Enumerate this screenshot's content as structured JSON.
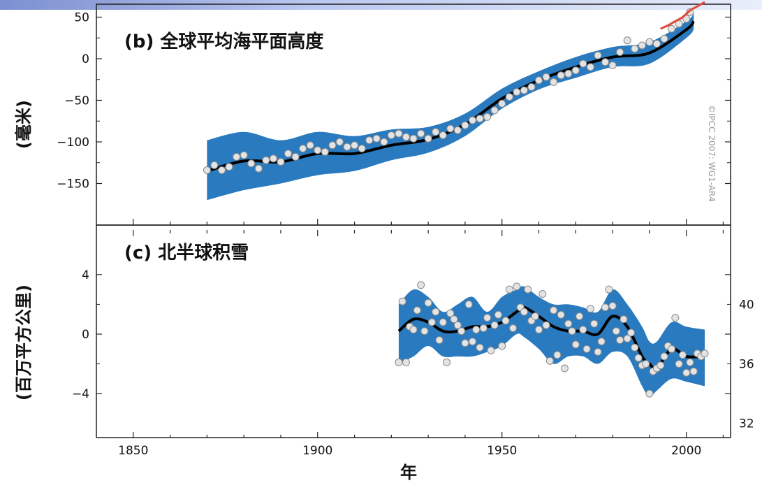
{
  "chart_data": [
    {
      "type": "scatter",
      "title": "(b) 全球平均海平面高度",
      "ylabel": "(毫米)",
      "xlim": [
        1840,
        2012
      ],
      "ylim": [
        -200,
        100
      ],
      "yticks": [
        50,
        0,
        -50,
        -100,
        -150
      ],
      "ytick_labels": [
        "50",
        "0",
        "−50",
        "−100",
        "−150"
      ],
      "credit": "©IPCC 2007: WG1-AR4",
      "uncertainty_color": "#2a7abf",
      "smooth_color": "#000000",
      "satellite_color": "#e04a3a",
      "band": {
        "x": [
          1870,
          1880,
          1890,
          1900,
          1910,
          1920,
          1930,
          1940,
          1950,
          1960,
          1970,
          1980,
          1990,
          2000,
          2002
        ],
        "upper": [
          -98,
          -88,
          -98,
          -88,
          -93,
          -85,
          -82,
          -66,
          -36,
          -15,
          2,
          14,
          20,
          45,
          55
        ],
        "lower": [
          -170,
          -158,
          -150,
          -140,
          -135,
          -122,
          -113,
          -93,
          -60,
          -37,
          -23,
          -10,
          -6,
          25,
          35
        ]
      },
      "smooth": {
        "x": [
          1870,
          1880,
          1890,
          1900,
          1910,
          1920,
          1930,
          1940,
          1950,
          1960,
          1970,
          1980,
          1990,
          2000,
          2002
        ],
        "y": [
          -135,
          -123,
          -124,
          -114,
          -114,
          -104,
          -97,
          -79,
          -48,
          -26,
          -10,
          2,
          7,
          35,
          45
        ]
      },
      "observations": {
        "x": [
          1870,
          1872,
          1874,
          1876,
          1878,
          1880,
          1882,
          1884,
          1886,
          1888,
          1890,
          1892,
          1894,
          1896,
          1898,
          1900,
          1902,
          1904,
          1906,
          1908,
          1910,
          1912,
          1914,
          1916,
          1918,
          1920,
          1922,
          1924,
          1926,
          1928,
          1930,
          1932,
          1934,
          1936,
          1938,
          1940,
          1942,
          1944,
          1946,
          1948,
          1950,
          1952,
          1954,
          1956,
          1958,
          1960,
          1962,
          1964,
          1966,
          1968,
          1970,
          1972,
          1974,
          1976,
          1978,
          1980,
          1982,
          1984,
          1986,
          1988,
          1990,
          1992,
          1994,
          1996,
          1998,
          2000,
          2001
        ],
        "y": [
          -134,
          -128,
          -134,
          -130,
          -118,
          -116,
          -126,
          -132,
          -122,
          -120,
          -124,
          -114,
          -118,
          -108,
          -104,
          -110,
          -112,
          -104,
          -100,
          -106,
          -104,
          -108,
          -98,
          -96,
          -100,
          -92,
          -90,
          -94,
          -96,
          -90,
          -96,
          -88,
          -92,
          -84,
          -86,
          -80,
          -74,
          -72,
          -70,
          -62,
          -54,
          -46,
          -40,
          -38,
          -34,
          -26,
          -22,
          -28,
          -20,
          -18,
          -14,
          -6,
          -10,
          4,
          -4,
          -8,
          8,
          22,
          12,
          16,
          20,
          18,
          24,
          36,
          42,
          48,
          56
        ]
      },
      "satellite": {
        "x": [
          1993,
          1995,
          1997,
          1999,
          2001,
          2003,
          2005
        ],
        "y": [
          36,
          40,
          45,
          50,
          58,
          63,
          68
        ]
      }
    },
    {
      "type": "scatter",
      "title": "(c) 北半球积雪",
      "ylabel": "(百万平方公里)",
      "xlabel": "年",
      "xlim": [
        1840,
        2012
      ],
      "ylim": [
        -7,
        7
      ],
      "yticks": [
        4,
        0,
        -4
      ],
      "ytick_labels": [
        "4",
        "0",
        "−4"
      ],
      "xticks": [
        1850,
        1900,
        1950,
        2000
      ],
      "xtick_labels": [
        "1850",
        "1900",
        "1950",
        "2000"
      ],
      "right_axis": {
        "ticks": [
          40,
          36,
          32
        ],
        "tick_labels": [
          "40",
          "36",
          "32"
        ],
        "left_offset": 38
      },
      "uncertainty_color": "#2a7abf",
      "smooth_color": "#000000",
      "band": {
        "x": [
          1922,
          1926,
          1930,
          1934,
          1938,
          1942,
          1946,
          1950,
          1954,
          1956,
          1960,
          1964,
          1968,
          1972,
          1976,
          1980,
          1984,
          1988,
          1990,
          1992,
          1996,
          2000,
          2005
        ],
        "upper": [
          2.0,
          3.0,
          2.5,
          1.5,
          2.0,
          2.5,
          1.5,
          2.5,
          3.0,
          3.2,
          2.5,
          2.0,
          2.0,
          1.8,
          1.5,
          3.0,
          2.0,
          0.5,
          -0.5,
          -0.5,
          0.8,
          0.5,
          0.3
        ],
        "lower": [
          -2.0,
          -1.5,
          -0.8,
          -1.5,
          -1.5,
          -1.5,
          -1.2,
          -0.8,
          0.0,
          -0.2,
          -1.0,
          -2.0,
          -1.5,
          -1.5,
          -2.0,
          -1.2,
          -1.5,
          -3.5,
          -4.2,
          -3.8,
          -3.0,
          -3.2,
          -3.5
        ]
      },
      "smooth": {
        "x": [
          1922,
          1926,
          1930,
          1934,
          1938,
          1942,
          1946,
          1950,
          1954,
          1956,
          1960,
          1964,
          1968,
          1972,
          1976,
          1980,
          1984,
          1988,
          1990,
          1992,
          1996,
          2000,
          2005
        ],
        "y": [
          0.2,
          1.0,
          0.8,
          0.2,
          0.2,
          0.5,
          0.5,
          0.8,
          1.5,
          1.8,
          1.2,
          0.5,
          0.2,
          0.2,
          0.0,
          1.2,
          0.5,
          -1.5,
          -2.0,
          -2.3,
          -1.0,
          -1.5,
          -1.5
        ]
      },
      "observations": {
        "x": [
          1922,
          1923,
          1924,
          1925,
          1926,
          1927,
          1928,
          1929,
          1930,
          1931,
          1932,
          1933,
          1934,
          1935,
          1936,
          1937,
          1938,
          1939,
          1940,
          1941,
          1942,
          1943,
          1944,
          1945,
          1946,
          1947,
          1948,
          1949,
          1950,
          1951,
          1952,
          1953,
          1954,
          1955,
          1956,
          1957,
          1958,
          1959,
          1960,
          1961,
          1962,
          1963,
          1964,
          1965,
          1966,
          1967,
          1968,
          1969,
          1970,
          1971,
          1972,
          1973,
          1974,
          1975,
          1976,
          1977,
          1978,
          1979,
          1980,
          1981,
          1982,
          1983,
          1984,
          1985,
          1986,
          1987,
          1988,
          1989,
          1990,
          1991,
          1992,
          1993,
          1994,
          1995,
          1996,
          1997,
          1998,
          1999,
          2000,
          2001,
          2002,
          2003,
          2004,
          2005
        ],
        "y": [
          -1.9,
          2.2,
          -1.9,
          0.5,
          0.3,
          1.6,
          3.3,
          0.2,
          2.1,
          0.8,
          1.5,
          -0.4,
          0.8,
          -1.9,
          1.4,
          1.0,
          0.6,
          0.2,
          -0.6,
          2.0,
          -0.5,
          0.3,
          -0.9,
          0.4,
          1.1,
          -1.1,
          0.6,
          1.3,
          -0.8,
          0.9,
          3.0,
          0.4,
          3.2,
          1.8,
          1.5,
          3.0,
          0.9,
          1.2,
          0.3,
          2.7,
          0.6,
          -1.8,
          1.6,
          -1.4,
          1.3,
          -2.3,
          0.7,
          0.2,
          -0.7,
          1.2,
          0.3,
          -1.0,
          1.7,
          0.7,
          -1.2,
          -0.5,
          1.8,
          3.0,
          1.9,
          0.2,
          -0.4,
          1.0,
          -0.3,
          0.1,
          -0.9,
          -1.6,
          -2.1,
          -2.0,
          -4.0,
          -2.5,
          -2.3,
          -2.1,
          -1.5,
          -0.8,
          -1.0,
          1.1,
          -2.0,
          -1.4,
          -2.6,
          -1.9,
          -2.5,
          -1.3,
          -1.5,
          -1.3
        ]
      }
    }
  ]
}
